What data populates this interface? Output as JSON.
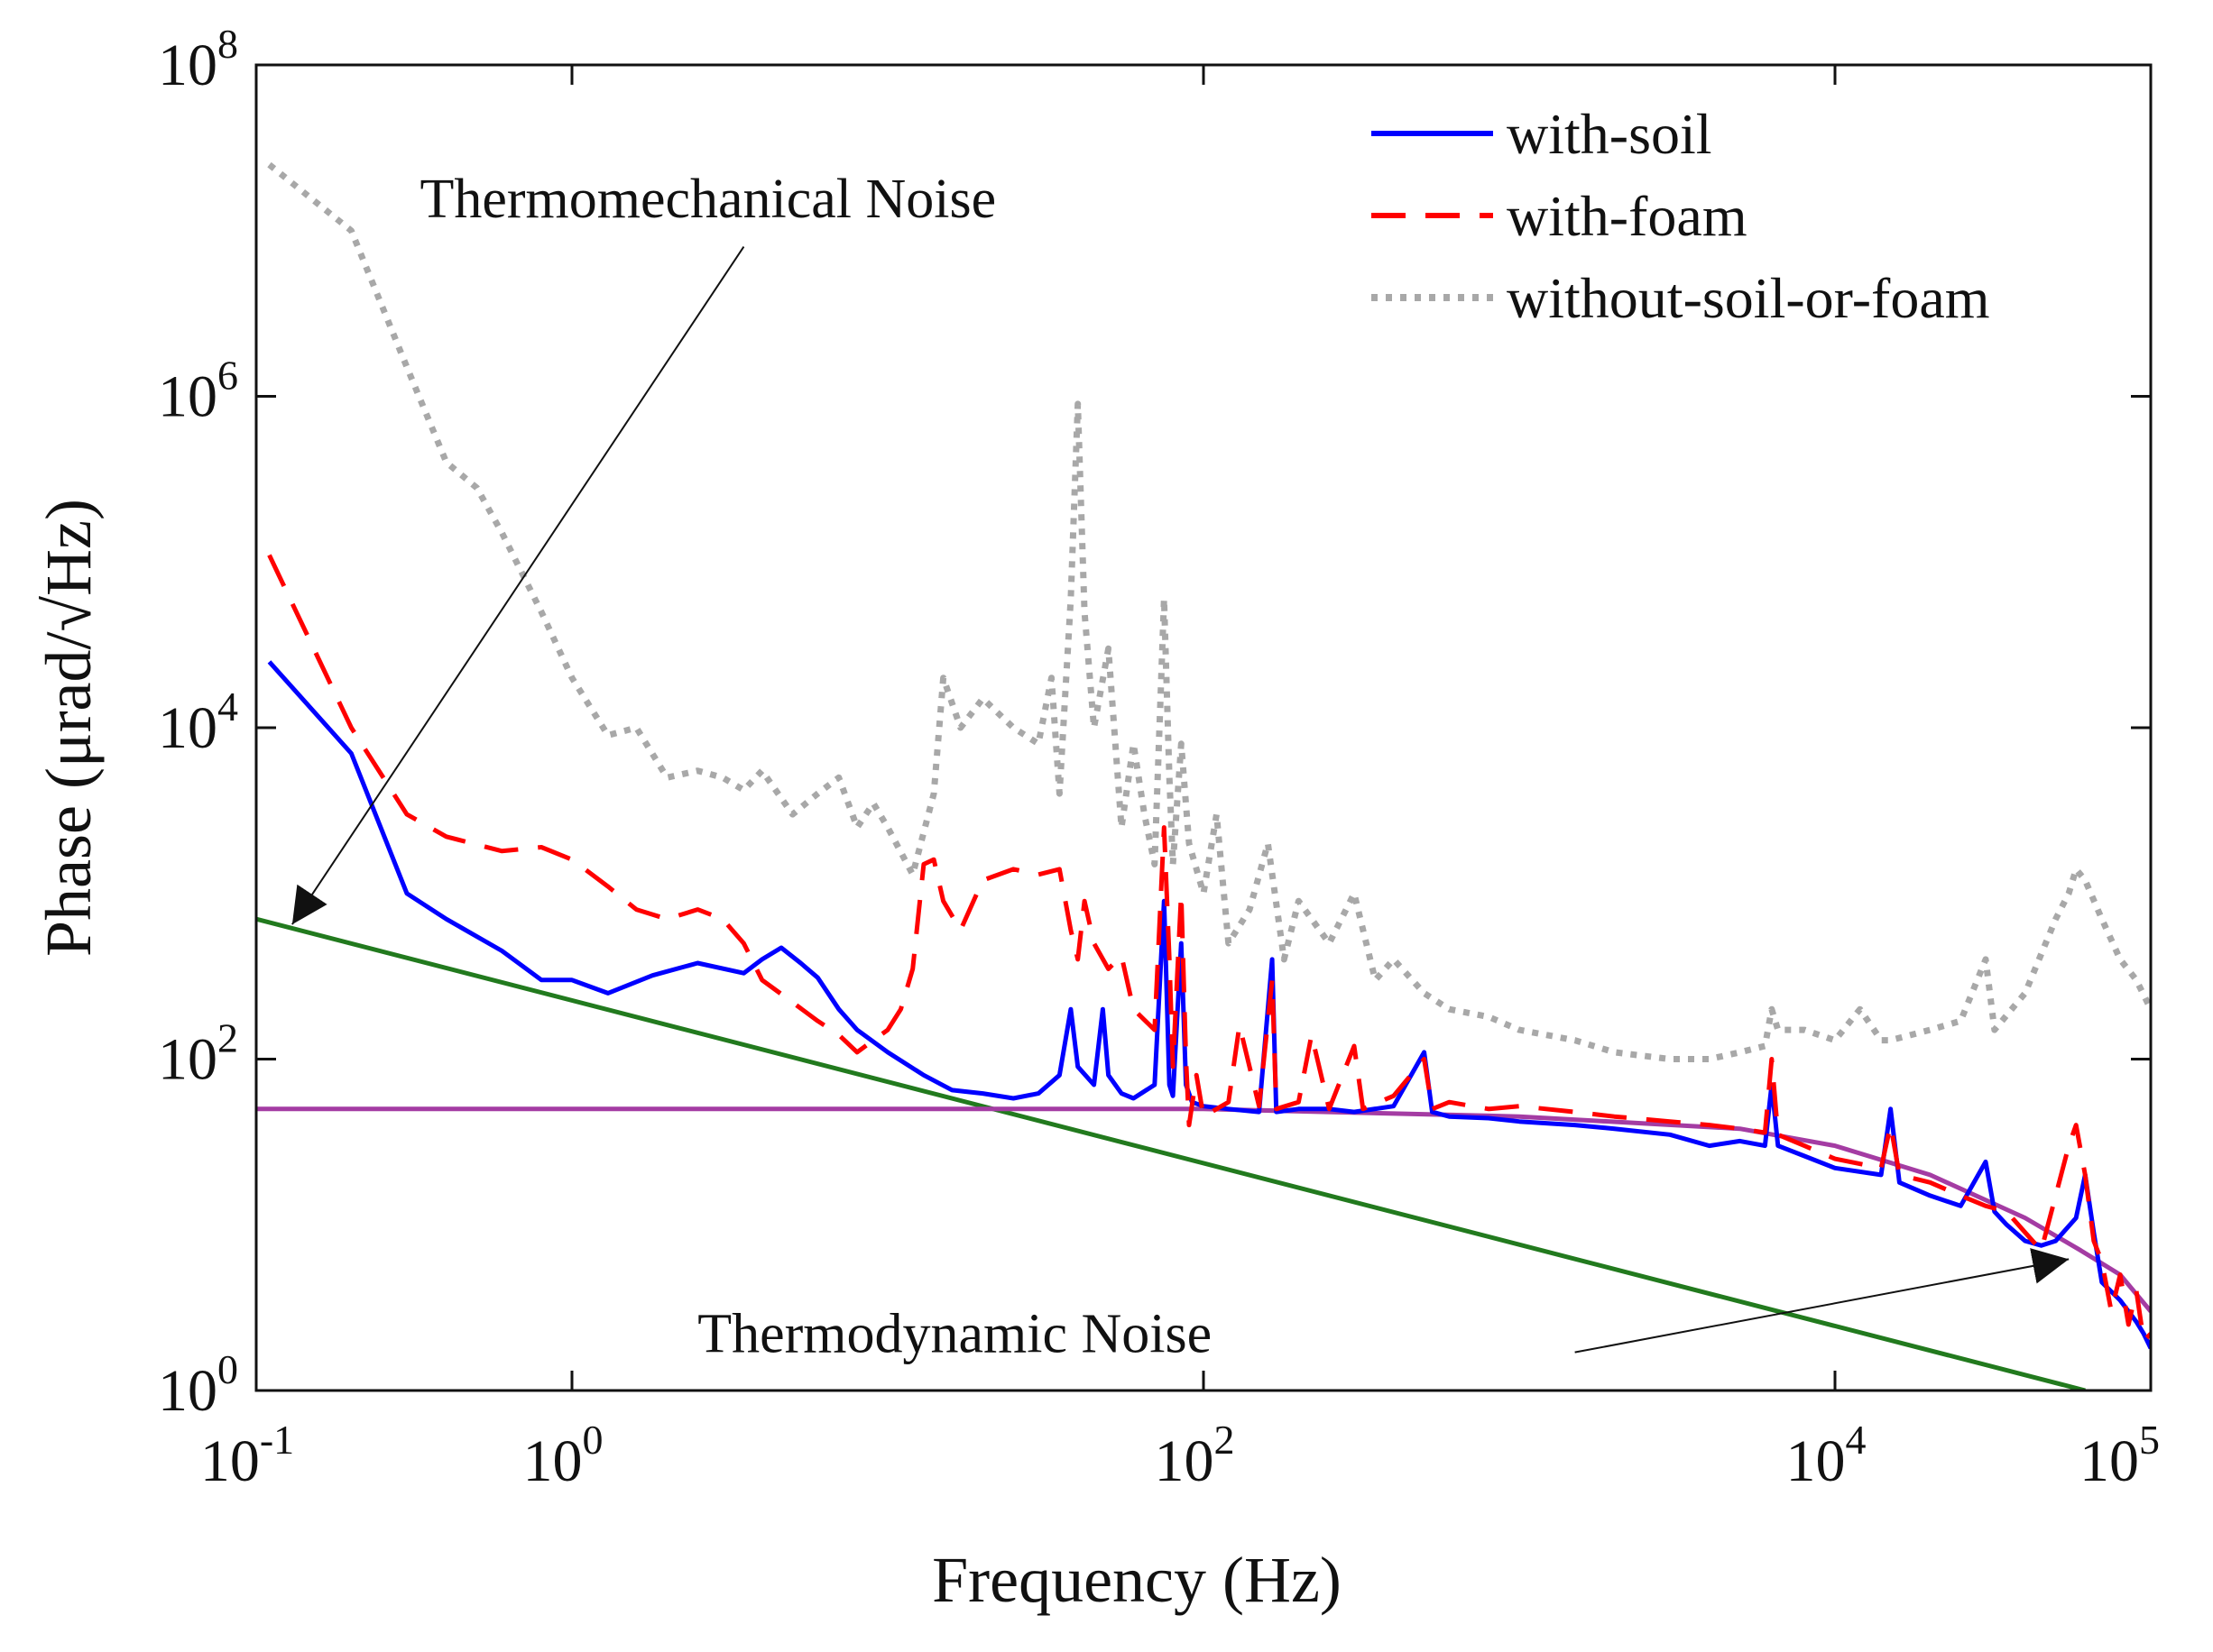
{
  "chart_data": {
    "type": "line",
    "xscale": "log",
    "yscale": "log",
    "xlabel": "Frequency (Hz)",
    "ylabel": "Phase (μrad/√Hz)",
    "xlim": [
      0.1,
      100000
    ],
    "ylim": [
      1,
      100000000
    ],
    "x_ticks": [
      {
        "value": 0.1,
        "base": "10",
        "exp": "-1"
      },
      {
        "value": 1,
        "base": "10",
        "exp": "0"
      },
      {
        "value": 100,
        "base": "10",
        "exp": "2"
      },
      {
        "value": 10000,
        "base": "10",
        "exp": "4"
      },
      {
        "value": 100000,
        "base": "10",
        "exp": "5"
      }
    ],
    "y_ticks": [
      {
        "value": 1,
        "base": "10",
        "exp": "0"
      },
      {
        "value": 100,
        "base": "10",
        "exp": "2"
      },
      {
        "value": 10000,
        "base": "10",
        "exp": "4"
      },
      {
        "value": 1000000,
        "base": "10",
        "exp": "6"
      },
      {
        "value": 100000000,
        "base": "10",
        "exp": "8"
      }
    ],
    "legend": {
      "position": "top-right"
    },
    "series": [
      {
        "name": "with-soil",
        "color": "#0000ff",
        "style": "solid",
        "in_legend": true,
        "points": [
          [
            0.11,
            25000
          ],
          [
            0.2,
            7000
          ],
          [
            0.3,
            1000
          ],
          [
            0.4,
            700
          ],
          [
            0.6,
            450
          ],
          [
            0.8,
            300
          ],
          [
            1.0,
            300
          ],
          [
            1.3,
            250
          ],
          [
            1.8,
            320
          ],
          [
            2.5,
            380
          ],
          [
            3.5,
            330
          ],
          [
            4.0,
            400
          ],
          [
            4.6,
            470
          ],
          [
            5.3,
            380
          ],
          [
            6.0,
            310
          ],
          [
            7.0,
            200
          ],
          [
            8.0,
            150
          ],
          [
            10,
            110
          ],
          [
            13,
            80
          ],
          [
            16,
            65
          ],
          [
            20,
            62
          ],
          [
            25,
            58
          ],
          [
            30,
            62
          ],
          [
            35,
            80
          ],
          [
            38,
            200
          ],
          [
            40,
            90
          ],
          [
            45,
            70
          ],
          [
            48,
            200
          ],
          [
            50,
            80
          ],
          [
            55,
            62
          ],
          [
            60,
            58
          ],
          [
            70,
            70
          ],
          [
            75,
            900
          ],
          [
            78,
            70
          ],
          [
            80,
            60
          ],
          [
            85,
            500
          ],
          [
            88,
            70
          ],
          [
            92,
            55
          ],
          [
            100,
            52
          ],
          [
            120,
            50
          ],
          [
            150,
            48
          ],
          [
            165,
            400
          ],
          [
            170,
            48
          ],
          [
            200,
            50
          ],
          [
            250,
            50
          ],
          [
            300,
            48
          ],
          [
            400,
            52
          ],
          [
            500,
            110
          ],
          [
            530,
            48
          ],
          [
            600,
            45
          ],
          [
            800,
            44
          ],
          [
            1000,
            42
          ],
          [
            1500,
            40
          ],
          [
            2000,
            38
          ],
          [
            3000,
            35
          ],
          [
            4000,
            30
          ],
          [
            5000,
            32
          ],
          [
            6000,
            30
          ],
          [
            6300,
            70
          ],
          [
            6600,
            30
          ],
          [
            8000,
            26
          ],
          [
            10000,
            22
          ],
          [
            14000,
            20
          ],
          [
            15000,
            50
          ],
          [
            16000,
            18
          ],
          [
            20000,
            15
          ],
          [
            25000,
            13
          ],
          [
            30000,
            24
          ],
          [
            32000,
            12
          ],
          [
            35000,
            10
          ],
          [
            40000,
            8
          ],
          [
            45000,
            7.5
          ],
          [
            50000,
            8
          ],
          [
            58000,
            11
          ],
          [
            62000,
            20
          ],
          [
            66000,
            9
          ],
          [
            70000,
            4.5
          ],
          [
            80000,
            3.5
          ],
          [
            90000,
            2.6
          ],
          [
            95000,
            2.2
          ],
          [
            100000,
            1.8
          ]
        ]
      },
      {
        "name": "with-foam",
        "color": "#ff0000",
        "style": "dashed",
        "in_legend": true,
        "points": [
          [
            0.11,
            110000
          ],
          [
            0.2,
            10000
          ],
          [
            0.3,
            3000
          ],
          [
            0.4,
            2200
          ],
          [
            0.6,
            1800
          ],
          [
            0.8,
            1900
          ],
          [
            1.0,
            1600
          ],
          [
            1.3,
            1100
          ],
          [
            1.6,
            800
          ],
          [
            2.0,
            700
          ],
          [
            2.5,
            800
          ],
          [
            3.0,
            700
          ],
          [
            3.5,
            500
          ],
          [
            4.0,
            300
          ],
          [
            5.0,
            220
          ],
          [
            6.0,
            170
          ],
          [
            7.0,
            140
          ],
          [
            8.0,
            110
          ],
          [
            9.0,
            130
          ],
          [
            10,
            150
          ],
          [
            11,
            200
          ],
          [
            12,
            350
          ],
          [
            13,
            1500
          ],
          [
            14,
            1600
          ],
          [
            15,
            900
          ],
          [
            17,
            600
          ],
          [
            20,
            1200
          ],
          [
            25,
            1400
          ],
          [
            30,
            1300
          ],
          [
            35,
            1400
          ],
          [
            38,
            600
          ],
          [
            40,
            400
          ],
          [
            42,
            900
          ],
          [
            45,
            500
          ],
          [
            50,
            350
          ],
          [
            55,
            420
          ],
          [
            60,
            200
          ],
          [
            70,
            150
          ],
          [
            75,
            2500
          ],
          [
            78,
            400
          ],
          [
            80,
            90
          ],
          [
            85,
            1000
          ],
          [
            88,
            100
          ],
          [
            90,
            40
          ],
          [
            95,
            80
          ],
          [
            100,
            45
          ],
          [
            120,
            55
          ],
          [
            130,
            160
          ],
          [
            150,
            52
          ],
          [
            165,
            300
          ],
          [
            170,
            50
          ],
          [
            200,
            55
          ],
          [
            220,
            140
          ],
          [
            250,
            50
          ],
          [
            300,
            120
          ],
          [
            320,
            50
          ],
          [
            400,
            60
          ],
          [
            500,
            100
          ],
          [
            530,
            50
          ],
          [
            600,
            55
          ],
          [
            800,
            50
          ],
          [
            1000,
            52
          ],
          [
            1500,
            48
          ],
          [
            2000,
            45
          ],
          [
            3000,
            42
          ],
          [
            4000,
            40
          ],
          [
            5000,
            38
          ],
          [
            6000,
            36
          ],
          [
            6300,
            100
          ],
          [
            6600,
            35
          ],
          [
            8000,
            30
          ],
          [
            10000,
            25
          ],
          [
            14000,
            22
          ],
          [
            15000,
            40
          ],
          [
            16000,
            20
          ],
          [
            20000,
            18
          ],
          [
            25000,
            15
          ],
          [
            30000,
            13
          ],
          [
            35000,
            12
          ],
          [
            40000,
            9
          ],
          [
            45000,
            7
          ],
          [
            50000,
            15
          ],
          [
            55000,
            30
          ],
          [
            58000,
            40
          ],
          [
            62000,
            20
          ],
          [
            66000,
            8
          ],
          [
            70000,
            6
          ],
          [
            75000,
            3
          ],
          [
            80000,
            5
          ],
          [
            85000,
            2.5
          ],
          [
            90000,
            4
          ],
          [
            95000,
            2
          ],
          [
            100000,
            2.2
          ]
        ]
      },
      {
        "name": "without-soil-or-foam",
        "color": "#a8a8a8",
        "style": "dotted",
        "in_legend": true,
        "points": [
          [
            0.11,
            25000000
          ],
          [
            0.2,
            10000000
          ],
          [
            0.3,
            1500000
          ],
          [
            0.4,
            400000
          ],
          [
            0.5,
            280000
          ],
          [
            0.6,
            150000
          ],
          [
            0.8,
            50000
          ],
          [
            1.0,
            20000
          ],
          [
            1.3,
            9000
          ],
          [
            1.6,
            10000
          ],
          [
            2.0,
            5000
          ],
          [
            2.5,
            5500
          ],
          [
            3.0,
            5000
          ],
          [
            3.5,
            4200
          ],
          [
            4.0,
            5500
          ],
          [
            5.0,
            3000
          ],
          [
            6.0,
            4000
          ],
          [
            7.0,
            5000
          ],
          [
            8.0,
            2500
          ],
          [
            9.0,
            3500
          ],
          [
            10,
            2500
          ],
          [
            12,
            1300
          ],
          [
            14,
            4000
          ],
          [
            15,
            20000
          ],
          [
            17,
            10000
          ],
          [
            20,
            15000
          ],
          [
            25,
            10000
          ],
          [
            30,
            8000
          ],
          [
            33,
            20000
          ],
          [
            35,
            4000
          ],
          [
            38,
            60000
          ],
          [
            40,
            900000
          ],
          [
            42,
            50000
          ],
          [
            45,
            10000
          ],
          [
            50,
            30000
          ],
          [
            55,
            2500
          ],
          [
            60,
            8000
          ],
          [
            65,
            3000
          ],
          [
            70,
            1500
          ],
          [
            75,
            60000
          ],
          [
            78,
            5000
          ],
          [
            80,
            1500
          ],
          [
            85,
            8000
          ],
          [
            90,
            2000
          ],
          [
            100,
            1000
          ],
          [
            110,
            3000
          ],
          [
            120,
            500
          ],
          [
            140,
            800
          ],
          [
            160,
            2000
          ],
          [
            180,
            400
          ],
          [
            200,
            900
          ],
          [
            250,
            500
          ],
          [
            300,
            1000
          ],
          [
            350,
            300
          ],
          [
            400,
            400
          ],
          [
            500,
            250
          ],
          [
            600,
            200
          ],
          [
            800,
            180
          ],
          [
            1000,
            150
          ],
          [
            1500,
            130
          ],
          [
            2000,
            110
          ],
          [
            3000,
            100
          ],
          [
            4000,
            100
          ],
          [
            5000,
            110
          ],
          [
            6000,
            120
          ],
          [
            6300,
            200
          ],
          [
            6600,
            150
          ],
          [
            8000,
            150
          ],
          [
            10000,
            130
          ],
          [
            12000,
            200
          ],
          [
            14000,
            130
          ],
          [
            15000,
            130
          ],
          [
            20000,
            150
          ],
          [
            25000,
            170
          ],
          [
            30000,
            400
          ],
          [
            32000,
            150
          ],
          [
            40000,
            250
          ],
          [
            50000,
            700
          ],
          [
            55000,
            1000
          ],
          [
            58000,
            1400
          ],
          [
            62000,
            1200
          ],
          [
            70000,
            700
          ],
          [
            80000,
            400
          ],
          [
            90000,
            300
          ],
          [
            100000,
            200
          ]
        ]
      },
      {
        "name": "Thermomechanical noise model",
        "color": "#227a1e",
        "style": "solid",
        "in_legend": false,
        "points": [
          [
            0.1,
            700
          ],
          [
            62000,
            1
          ]
        ]
      },
      {
        "name": "Thermodynamic noise model",
        "color": "#a43ca3",
        "style": "solid",
        "in_legend": false,
        "points": [
          [
            0.1,
            50
          ],
          [
            100,
            50
          ],
          [
            1000,
            45
          ],
          [
            5000,
            38
          ],
          [
            10000,
            30
          ],
          [
            20000,
            20
          ],
          [
            40000,
            11
          ],
          [
            60000,
            7
          ],
          [
            80000,
            5
          ],
          [
            100000,
            3
          ]
        ]
      }
    ],
    "annotations": [
      {
        "text": "Thermomechanical Noise",
        "text_at": [
          0.33,
          12000000
        ],
        "arrow_from": [
          3.5,
          8000000
        ],
        "arrow_to": [
          0.13,
          650
        ]
      },
      {
        "text": "Thermodynamic Noise",
        "text_at": [
          2.5,
          1.7
        ],
        "arrow_from": [
          1500,
          1.7
        ],
        "arrow_to": [
          55000,
          6.2
        ]
      }
    ]
  }
}
